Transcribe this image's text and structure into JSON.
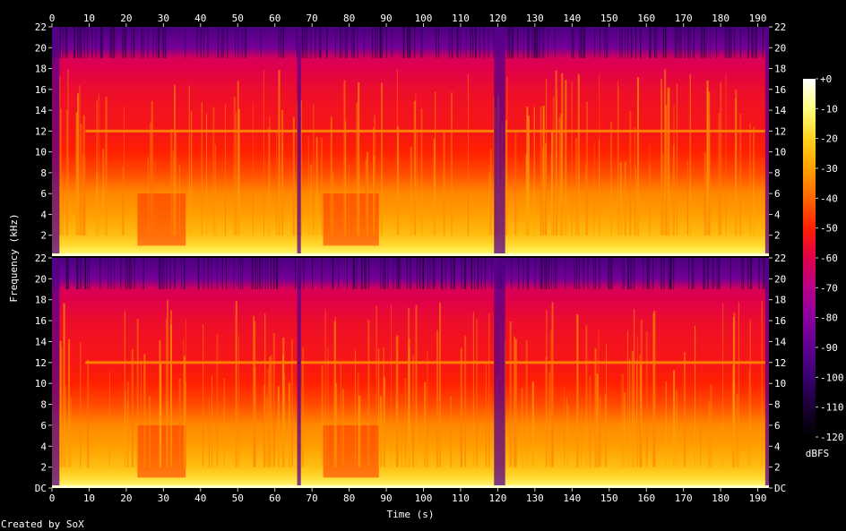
{
  "chart_data": {
    "type": "heatmap",
    "title": "",
    "xlabel": "Time (s)",
    "ylabel": "Frequency (kHz)",
    "footer": "Created by SoX",
    "xlim": [
      0,
      193
    ],
    "x_ticks": [
      "0",
      "10",
      "20",
      "30",
      "40",
      "50",
      "60",
      "70",
      "80",
      "90",
      "100",
      "110",
      "120",
      "130",
      "140",
      "150",
      "160",
      "170",
      "180",
      "190"
    ],
    "y_ticks": [
      "DC",
      "2",
      "4",
      "6",
      "8",
      "10",
      "12",
      "14",
      "16",
      "18",
      "20",
      "22"
    ],
    "ylim_khz": [
      0,
      22
    ],
    "channels": 2,
    "colorbar": {
      "label": "dBFS",
      "ticks": [
        "+0",
        "-10",
        "-20",
        "-30",
        "-40",
        "-50",
        "-60",
        "-70",
        "-80",
        "-90",
        "-100",
        "-110",
        "-120"
      ],
      "range": [
        -120,
        0
      ],
      "colors": [
        "#000000",
        "#1a0033",
        "#3a0070",
        "#5e0090",
        "#8a00a0",
        "#b8008a",
        "#e0004a",
        "#ff2000",
        "#ff6600",
        "#ff9f00",
        "#ffd21e",
        "#ffff80",
        "#ffffff"
      ]
    },
    "spectral_profile": {
      "comment": "",
      "freq_khz": [
        0,
        1,
        2,
        4,
        6,
        8,
        10,
        12,
        14,
        16,
        18,
        19,
        20,
        22
      ],
      "level_dbfs": [
        -10,
        -18,
        -24,
        -30,
        -34,
        -44,
        -50,
        -53,
        -54,
        -56,
        -60,
        -62,
        -85,
        -95
      ],
      "cutoff_khz": 19
    },
    "quiet_sections_s": [
      [
        0,
        2
      ],
      [
        66,
        67
      ],
      [
        119,
        122
      ],
      [
        192,
        193
      ]
    ],
    "sparse_sections_s": [
      [
        23,
        36
      ],
      [
        73,
        88
      ]
    ],
    "tone_khz": 12,
    "tone_active_s": [
      [
        9,
        66
      ],
      [
        67,
        119
      ],
      [
        122,
        192
      ]
    ]
  }
}
